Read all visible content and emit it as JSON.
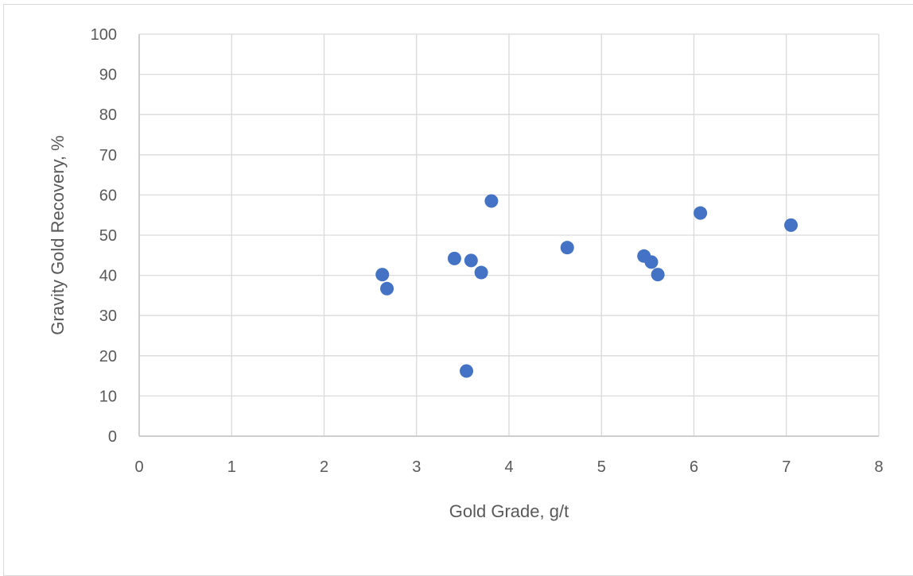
{
  "chart_data": {
    "type": "scatter",
    "title": "",
    "xlabel": "Gold Grade, g/t",
    "ylabel": "Gravity Gold Recovery, %",
    "xlim": [
      0,
      8
    ],
    "ylim": [
      0,
      100
    ],
    "x_ticks": [
      0,
      1,
      2,
      3,
      4,
      5,
      6,
      7,
      8
    ],
    "y_ticks": [
      0,
      10,
      20,
      30,
      40,
      50,
      60,
      70,
      80,
      90,
      100
    ],
    "grid": true,
    "legend": "none",
    "marker_color": "#4472C4",
    "grid_color": "#d9d9d9",
    "axis_color": "#bfbfbf",
    "series": [
      {
        "points": [
          {
            "x": 2.63,
            "y": 40.2
          },
          {
            "x": 2.68,
            "y": 36.7
          },
          {
            "x": 3.41,
            "y": 44.2
          },
          {
            "x": 3.54,
            "y": 16.2
          },
          {
            "x": 3.59,
            "y": 43.7
          },
          {
            "x": 3.7,
            "y": 40.7
          },
          {
            "x": 3.81,
            "y": 58.5
          },
          {
            "x": 4.63,
            "y": 46.9
          },
          {
            "x": 5.46,
            "y": 44.8
          },
          {
            "x": 5.54,
            "y": 43.3
          },
          {
            "x": 5.61,
            "y": 40.2
          },
          {
            "x": 6.07,
            "y": 55.5
          },
          {
            "x": 7.05,
            "y": 52.5
          }
        ]
      }
    ]
  }
}
